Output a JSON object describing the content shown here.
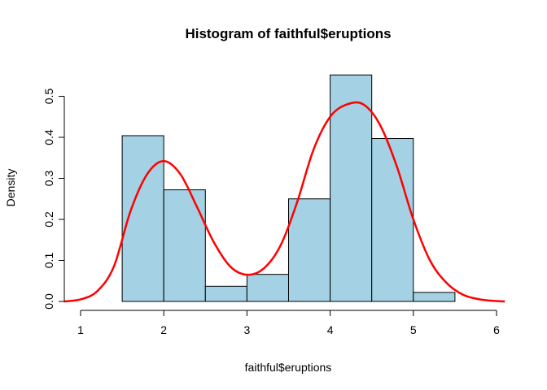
{
  "chart_data": {
    "type": "bar",
    "title": "Histogram of faithful$eruptions",
    "xlabel": "faithful$eruptions",
    "ylabel": "Density",
    "xlim": [
      0.8,
      6.1
    ],
    "ylim": [
      0,
      0.55
    ],
    "x_ticks": [
      1,
      2,
      3,
      4,
      5,
      6
    ],
    "y_ticks": [
      0.0,
      0.1,
      0.2,
      0.3,
      0.4,
      0.5
    ],
    "x_tick_labels": [
      "1",
      "2",
      "3",
      "4",
      "5",
      "6"
    ],
    "y_tick_labels": [
      "0.0",
      "0.1",
      "0.2",
      "0.3",
      "0.4",
      "0.5"
    ],
    "bins": [
      {
        "start": 1.5,
        "end": 2.0,
        "density": 0.404
      },
      {
        "start": 2.0,
        "end": 2.5,
        "density": 0.272
      },
      {
        "start": 2.5,
        "end": 3.0,
        "density": 0.037
      },
      {
        "start": 3.0,
        "end": 3.5,
        "density": 0.066
      },
      {
        "start": 3.5,
        "end": 4.0,
        "density": 0.25
      },
      {
        "start": 4.0,
        "end": 4.5,
        "density": 0.552
      },
      {
        "start": 4.5,
        "end": 5.0,
        "density": 0.397
      },
      {
        "start": 5.0,
        "end": 5.5,
        "density": 0.022
      }
    ],
    "bar_color": "#a4d1e3",
    "density_curve": {
      "color": "#ff0000",
      "x": [
        0.8,
        1.0,
        1.2,
        1.4,
        1.6,
        1.8,
        2.0,
        2.2,
        2.4,
        2.6,
        2.8,
        3.0,
        3.2,
        3.4,
        3.6,
        3.8,
        4.0,
        4.2,
        4.4,
        4.6,
        4.8,
        5.0,
        5.2,
        5.4,
        5.6,
        5.8,
        6.0,
        6.1
      ],
      "y": [
        0.0,
        0.005,
        0.025,
        0.085,
        0.22,
        0.31,
        0.342,
        0.31,
        0.23,
        0.145,
        0.085,
        0.065,
        0.08,
        0.135,
        0.24,
        0.37,
        0.45,
        0.48,
        0.48,
        0.43,
        0.33,
        0.2,
        0.1,
        0.045,
        0.016,
        0.005,
        0.001,
        0.0
      ]
    }
  }
}
